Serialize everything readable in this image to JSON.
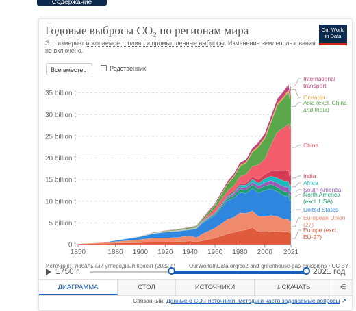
{
  "top_button": {
    "label": "Содержание"
  },
  "header": {
    "title": "Годовые выбросы CO₂ по регионам мира",
    "subtitle_pre": "Это измеряет",
    "subtitle_link": "ископаемое топливо и промышленные выбросы",
    "subtitle_post": ". Изменение землепользования не включено.",
    "logo_line1": "Our World",
    "logo_line2": "in Data"
  },
  "controls": {
    "select_value": "Все вместе",
    "relative_label": "Родственник"
  },
  "chart_data": {
    "type": "area",
    "stacked": true,
    "x_ticks": [
      "1850",
      "1880",
      "1900",
      "1920",
      "1940",
      "1960",
      "1980",
      "2000",
      "2021"
    ],
    "y_ticks": [
      "0 t",
      "5 billion t",
      "10 billion t",
      "15 billion t",
      "20 billion t",
      "25 billion t",
      "30 billion t",
      "35 billion t"
    ],
    "xlim": [
      1850,
      2021
    ],
    "ylim": [
      0,
      37
    ],
    "x": [
      1850,
      1870,
      1900,
      1910,
      1920,
      1930,
      1940,
      1945,
      1950,
      1960,
      1970,
      1975,
      1980,
      1985,
      1990,
      1995,
      2000,
      2005,
      2010,
      2015,
      2019,
      2020,
      2021
    ],
    "series": [
      {
        "name": "Europe (excl. EU-27)",
        "color": "#e05a3c",
        "values": [
          0.15,
          0.25,
          0.45,
          0.6,
          0.6,
          0.65,
          0.8,
          0.6,
          0.9,
          1.5,
          2.5,
          2.8,
          3.2,
          3.4,
          3.9,
          2.9,
          2.9,
          3.0,
          3.1,
          2.9,
          2.9,
          2.7,
          2.8
        ]
      },
      {
        "name": "European Union (27)",
        "color": "#f08a6c",
        "values": [
          0.05,
          0.2,
          0.7,
          0.9,
          0.95,
          1.0,
          1.25,
          1.0,
          1.6,
          2.3,
          3.3,
          3.5,
          4.1,
          3.8,
          3.9,
          3.6,
          3.6,
          3.7,
          3.4,
          3.0,
          2.9,
          2.6,
          2.7
        ]
      },
      {
        "name": "United States",
        "color": "#2e86de",
        "values": [
          0.02,
          0.05,
          0.66,
          1.0,
          1.3,
          1.4,
          1.35,
          2.0,
          2.5,
          2.9,
          4.3,
          4.4,
          4.7,
          4.6,
          5.1,
          5.4,
          6.0,
          6.1,
          5.7,
          5.4,
          5.3,
          4.7,
          5.0
        ]
      },
      {
        "name": "North America (excl. USA)",
        "color": "#1f9e72",
        "values": [
          0.0,
          0.0,
          0.03,
          0.05,
          0.06,
          0.07,
          0.08,
          0.1,
          0.15,
          0.3,
          0.5,
          0.6,
          0.75,
          0.75,
          0.9,
          0.9,
          1.0,
          1.1,
          1.0,
          1.0,
          1.0,
          0.95,
          1.0
        ]
      },
      {
        "name": "South America",
        "color": "#9b59b6",
        "values": [
          0.0,
          0.0,
          0.01,
          0.02,
          0.03,
          0.04,
          0.05,
          0.06,
          0.1,
          0.2,
          0.3,
          0.4,
          0.5,
          0.55,
          0.6,
          0.7,
          0.8,
          0.9,
          1.0,
          1.1,
          1.1,
          1.0,
          1.1
        ]
      },
      {
        "name": "Africa",
        "color": "#17bcbe",
        "values": [
          0.0,
          0.0,
          0.01,
          0.02,
          0.03,
          0.04,
          0.05,
          0.06,
          0.1,
          0.15,
          0.25,
          0.3,
          0.5,
          0.6,
          0.65,
          0.7,
          0.9,
          1.0,
          1.2,
          1.3,
          1.4,
          1.3,
          1.4
        ]
      },
      {
        "name": "India",
        "color": "#d63b55",
        "values": [
          0.0,
          0.0,
          0.02,
          0.03,
          0.04,
          0.05,
          0.06,
          0.07,
          0.1,
          0.2,
          0.3,
          0.35,
          0.4,
          0.5,
          0.6,
          0.8,
          1.0,
          1.2,
          1.7,
          2.3,
          2.6,
          2.4,
          2.7
        ]
      },
      {
        "name": "China",
        "color": "#f35d6b",
        "values": [
          0.0,
          0.0,
          0.0,
          0.01,
          0.02,
          0.03,
          0.04,
          0.05,
          0.1,
          0.8,
          0.9,
          1.2,
          1.5,
          2.0,
          2.4,
          3.4,
          3.6,
          6.0,
          8.9,
          9.9,
          10.7,
          10.9,
          11.5
        ]
      },
      {
        "name": "Asia (excl. China and India)",
        "color": "#5aa64b",
        "values": [
          0.0,
          0.0,
          0.05,
          0.1,
          0.15,
          0.2,
          0.25,
          0.3,
          0.4,
          0.8,
          1.6,
          2.0,
          2.4,
          2.6,
          3.2,
          4.1,
          4.6,
          5.2,
          6.1,
          6.8,
          7.3,
          7.1,
          7.4
        ]
      },
      {
        "name": "Oceania",
        "color": "#e2a33b",
        "values": [
          0.0,
          0.0,
          0.01,
          0.02,
          0.02,
          0.03,
          0.03,
          0.04,
          0.05,
          0.1,
          0.15,
          0.18,
          0.22,
          0.25,
          0.3,
          0.33,
          0.37,
          0.42,
          0.44,
          0.45,
          0.46,
          0.45,
          0.46
        ]
      },
      {
        "name": "International transport",
        "color": "#c1467f",
        "values": [
          0.0,
          0.0,
          0.02,
          0.04,
          0.05,
          0.07,
          0.08,
          0.1,
          0.15,
          0.3,
          0.5,
          0.55,
          0.6,
          0.6,
          0.7,
          0.8,
          0.9,
          1.0,
          1.1,
          1.2,
          1.3,
          1.0,
          1.1
        ]
      }
    ],
    "legend_placement": "right",
    "legend_labels": [
      [
        "International",
        "transport"
      ],
      [
        "Oceania"
      ],
      [
        "Asia (excl. China",
        "and India)"
      ],
      [
        "China"
      ],
      [
        "India"
      ],
      [
        "Africa"
      ],
      [
        "South America"
      ],
      [
        "North America",
        "(excl. USA)"
      ],
      [
        "United States"
      ],
      [
        "European Union",
        "(27)"
      ],
      [
        "Europe (excl.",
        "EU-27)"
      ]
    ]
  },
  "source": {
    "left": "Источник: Глобальный углеродный проект (2022 г.)",
    "right": "OurWorldInData.org/co2-and-greenhouse-gas-emissions • CC BY"
  },
  "timeline": {
    "start_label": "1750 г.",
    "end_label": "2021 год",
    "range_start": 1850,
    "range_end": 2021,
    "full_start": 1750,
    "full_end": 2021
  },
  "tabs": [
    {
      "label": "ДИАГРАММА"
    },
    {
      "label": "СТОЛ"
    },
    {
      "label": "ИСТОЧНИКИ"
    },
    {
      "label": "СКАЧАТЬ"
    }
  ],
  "related": {
    "prefix": "Связанный:",
    "link": "Данные о CO₂: источники, методы и часто задаваемые вопросы"
  },
  "icons": {
    "chevron": "chevron-down-icon",
    "share": "share-icon",
    "download": "download-icon",
    "external": "external-link-icon"
  }
}
